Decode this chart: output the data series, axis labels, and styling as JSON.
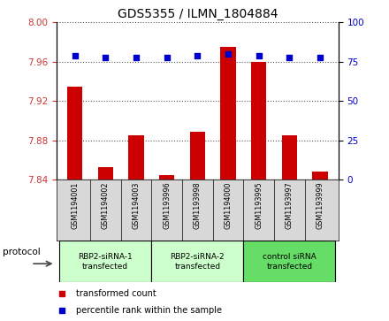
{
  "title": "GDS5355 / ILMN_1804884",
  "samples": [
    "GSM1194001",
    "GSM1194002",
    "GSM1194003",
    "GSM1193996",
    "GSM1193998",
    "GSM1194000",
    "GSM1193995",
    "GSM1193997",
    "GSM1193999"
  ],
  "transformed_count": [
    7.935,
    7.853,
    7.885,
    7.845,
    7.889,
    7.975,
    7.96,
    7.885,
    7.848
  ],
  "percentile_rank": [
    79,
    78,
    78,
    78,
    79,
    80,
    79,
    78,
    78
  ],
  "ylim_left": [
    7.84,
    8.0
  ],
  "ylim_right": [
    0,
    100
  ],
  "yticks_left": [
    7.84,
    7.88,
    7.92,
    7.96,
    8.0
  ],
  "yticks_right": [
    0,
    25,
    50,
    75,
    100
  ],
  "groups": [
    {
      "label": "RBP2-siRNA-1\ntransfected",
      "start": 0,
      "end": 2,
      "color": "#ccffcc"
    },
    {
      "label": "RBP2-siRNA-2\ntransfected",
      "start": 3,
      "end": 5,
      "color": "#ccffcc"
    },
    {
      "label": "control siRNA\ntransfected",
      "start": 6,
      "end": 8,
      "color": "#66dd66"
    }
  ],
  "bar_color": "#cc0000",
  "dot_color": "#0000cc",
  "dot_size": 25,
  "bar_width": 0.5,
  "grid_color": "#555555",
  "bg_color": "#d8d8d8",
  "plot_bg": "#ffffff",
  "left_tick_color": "#cc3333",
  "right_tick_color": "#0000cc",
  "protocol_label": "protocol",
  "legend_bar_label": "transformed count",
  "legend_dot_label": "percentile rank within the sample",
  "title_fontsize": 10,
  "tick_fontsize": 7.5,
  "label_fontsize": 7.5
}
